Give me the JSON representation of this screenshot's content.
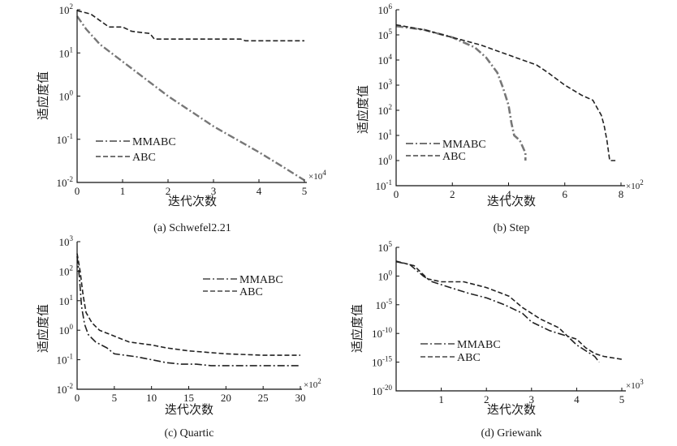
{
  "chart_data": [
    {
      "type": "line",
      "caption": "(a) Schwefel2.21",
      "xlabel": "迭代次数",
      "ylabel": "适应度值",
      "x_multiplier": "×10",
      "x_multiplier_exp": "4",
      "xlim": [
        0,
        5
      ],
      "x_ticks": [
        "0",
        "1",
        "2",
        "3",
        "4",
        "5"
      ],
      "y_scale": "log",
      "y_exp_range": [
        -2,
        2
      ],
      "y_tick_bases": [
        "10",
        "10",
        "10",
        "10",
        "10"
      ],
      "y_tick_exps": [
        "-2",
        "-1",
        "0",
        "1",
        "2"
      ],
      "legend": [
        "MMABC",
        "ABC"
      ],
      "series": [
        {
          "name": "MMABC",
          "style": "dashdot",
          "color": "#777777",
          "width": 2.4,
          "x": [
            0,
            0.2,
            0.5,
            1.0,
            2.0,
            3.0,
            4.0,
            4.5,
            5.0
          ],
          "y_log10": [
            1.85,
            1.55,
            1.2,
            0.8,
            0.0,
            -0.7,
            -1.3,
            -1.62,
            -1.95
          ]
        },
        {
          "name": "ABC",
          "style": "dashed",
          "color": "#222222",
          "width": 1.6,
          "x": [
            0,
            0.3,
            0.7,
            1.0,
            1.2,
            1.6,
            1.7,
            3.6,
            3.7,
            5.0
          ],
          "y_log10": [
            1.98,
            1.9,
            1.6,
            1.6,
            1.5,
            1.45,
            1.32,
            1.32,
            1.28,
            1.28
          ]
        }
      ]
    },
    {
      "type": "line",
      "caption": "(b) Step",
      "xlabel": "迭代次数",
      "ylabel": "适应度值",
      "x_multiplier": "×10",
      "x_multiplier_exp": "2",
      "xlim": [
        0,
        8
      ],
      "x_ticks": [
        "0",
        "2",
        "4",
        "6",
        "8"
      ],
      "y_scale": "log",
      "y_exp_range": [
        -1,
        6
      ],
      "y_tick_bases": [
        "10",
        "10",
        "10",
        "10",
        "10",
        "10",
        "10",
        "10"
      ],
      "y_tick_exps": [
        "-1",
        "0",
        "1",
        "2",
        "3",
        "4",
        "5",
        "6"
      ],
      "legend": [
        "MMABC",
        "ABC"
      ],
      "series": [
        {
          "name": "MMABC",
          "style": "dashdot",
          "color": "#777777",
          "width": 2.6,
          "x": [
            0,
            1.0,
            2.0,
            2.8,
            3.2,
            3.6,
            3.8,
            4.0,
            4.1,
            4.2,
            4.4,
            4.6,
            4.6
          ],
          "y_log10": [
            5.35,
            5.2,
            4.9,
            4.5,
            4.1,
            3.5,
            2.9,
            2.2,
            1.5,
            1.0,
            0.8,
            0.3,
            0.0
          ]
        },
        {
          "name": "ABC",
          "style": "dashed",
          "color": "#222222",
          "width": 1.6,
          "x": [
            0,
            1.0,
            2.0,
            3.0,
            4.0,
            5.0,
            5.4,
            6.0,
            6.6,
            7.0,
            7.1,
            7.3,
            7.4,
            7.5,
            7.6,
            7.8
          ],
          "y_log10": [
            5.4,
            5.2,
            4.9,
            4.6,
            4.2,
            3.8,
            3.5,
            3.0,
            2.6,
            2.4,
            2.2,
            1.8,
            1.4,
            0.8,
            0.0,
            0.0
          ]
        }
      ]
    },
    {
      "type": "line",
      "caption": "(c) Quartic",
      "xlabel": "迭代次数",
      "ylabel": "适应度值",
      "x_multiplier": "×10",
      "x_multiplier_exp": "2",
      "xlim": [
        0,
        30
      ],
      "x_ticks": [
        "0",
        "5",
        "10",
        "15",
        "20",
        "25",
        "30"
      ],
      "y_scale": "log",
      "y_exp_range": [
        -2,
        3
      ],
      "y_tick_bases": [
        "10",
        "10",
        "10",
        "10",
        "10",
        "10"
      ],
      "y_tick_exps": [
        "-2",
        "-1",
        "0",
        "1",
        "2",
        "3"
      ],
      "legend": [
        "MMABC",
        "ABC"
      ],
      "series": [
        {
          "name": "MMABC",
          "style": "dashdot",
          "color": "#222222",
          "width": 1.6,
          "x": [
            0,
            0.3,
            0.6,
            1.0,
            1.5,
            2.5,
            4.0,
            5.0,
            8.0,
            10.0,
            12.0,
            14.0,
            16.0,
            18.0,
            30.0
          ],
          "y_log10": [
            2.5,
            1.8,
            0.8,
            0.2,
            -0.15,
            -0.4,
            -0.6,
            -0.8,
            -0.9,
            -1.0,
            -1.1,
            -1.15,
            -1.15,
            -1.2,
            -1.2
          ]
        },
        {
          "name": "ABC",
          "style": "dashed",
          "color": "#222222",
          "width": 1.6,
          "x": [
            0,
            0.4,
            0.8,
            1.2,
            2.0,
            3.0,
            5.0,
            7.0,
            10.0,
            12.0,
            15.0,
            20.0,
            25.0,
            30.0
          ],
          "y_log10": [
            2.6,
            2.0,
            1.2,
            0.6,
            0.25,
            0.0,
            -0.2,
            -0.4,
            -0.5,
            -0.6,
            -0.7,
            -0.8,
            -0.85,
            -0.85
          ]
        }
      ]
    },
    {
      "type": "line",
      "caption": "(d) Griewank",
      "xlabel": "迭代次数",
      "ylabel": "适应度值",
      "x_multiplier": "×10",
      "x_multiplier_exp": "3",
      "xlim": [
        0,
        5
      ],
      "x_ticks": [
        "1",
        "2",
        "3",
        "4",
        "5"
      ],
      "y_scale": "log",
      "y_exp_range": [
        -20,
        5
      ],
      "y_tick_bases": [
        "10",
        "10",
        "10",
        "10",
        "10",
        "10"
      ],
      "y_tick_exps": [
        "-20",
        "-15",
        "-10",
        "-5",
        "0",
        "5"
      ],
      "legend": [
        "MMABC",
        "ABC"
      ],
      "series": [
        {
          "name": "MMABC",
          "style": "dashdot",
          "color": "#222222",
          "width": 1.6,
          "x": [
            0,
            0.3,
            0.6,
            0.8,
            1.2,
            1.6,
            2.0,
            2.4,
            2.8,
            3.0,
            3.4,
            3.8,
            4.0,
            4.2,
            4.4,
            4.5
          ],
          "y_log10": [
            2.5,
            2.0,
            0.0,
            -1.0,
            -2.0,
            -3.0,
            -3.8,
            -5.0,
            -6.5,
            -8.0,
            -9.5,
            -10.5,
            -12.0,
            -13.0,
            -14.0,
            -15.0
          ]
        },
        {
          "name": "ABC",
          "style": "dashed",
          "color": "#222222",
          "width": 1.6,
          "x": [
            0,
            0.4,
            0.7,
            1.0,
            1.5,
            2.0,
            2.5,
            2.8,
            3.2,
            3.6,
            3.8,
            4.0,
            4.2,
            4.4,
            4.6,
            5.0
          ],
          "y_log10": [
            2.6,
            1.8,
            -0.5,
            -1.0,
            -1.0,
            -2.0,
            -3.5,
            -5.5,
            -7.5,
            -9.0,
            -10.5,
            -11.0,
            -12.5,
            -13.5,
            -14.0,
            -14.5
          ]
        }
      ]
    }
  ]
}
